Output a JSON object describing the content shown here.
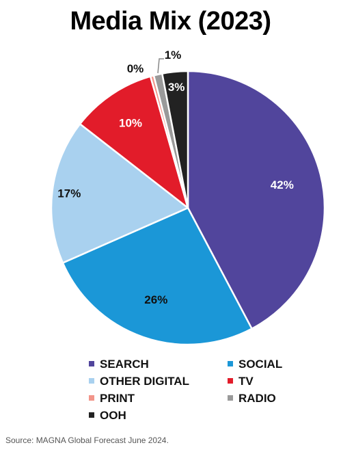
{
  "chart_data": {
    "type": "pie",
    "title": "Media Mix (2023)",
    "categories": [
      "SEARCH",
      "SOCIAL",
      "OTHER DIGITAL",
      "TV",
      "PRINT",
      "RADIO",
      "OOH"
    ],
    "values": [
      42,
      26,
      17,
      10,
      0.4,
      1,
      3
    ],
    "data_labels": [
      "42%",
      "26%",
      "17%",
      "10%",
      "0%",
      "1%",
      "3%"
    ],
    "colors": [
      "#51459c",
      "#1b97d7",
      "#a9d1ef",
      "#e21c2a",
      "#f2958a",
      "#9a9a9a",
      "#222222"
    ],
    "legend_placement": "bottom"
  },
  "source": "Source: MAGNA Global Forecast June 2024."
}
